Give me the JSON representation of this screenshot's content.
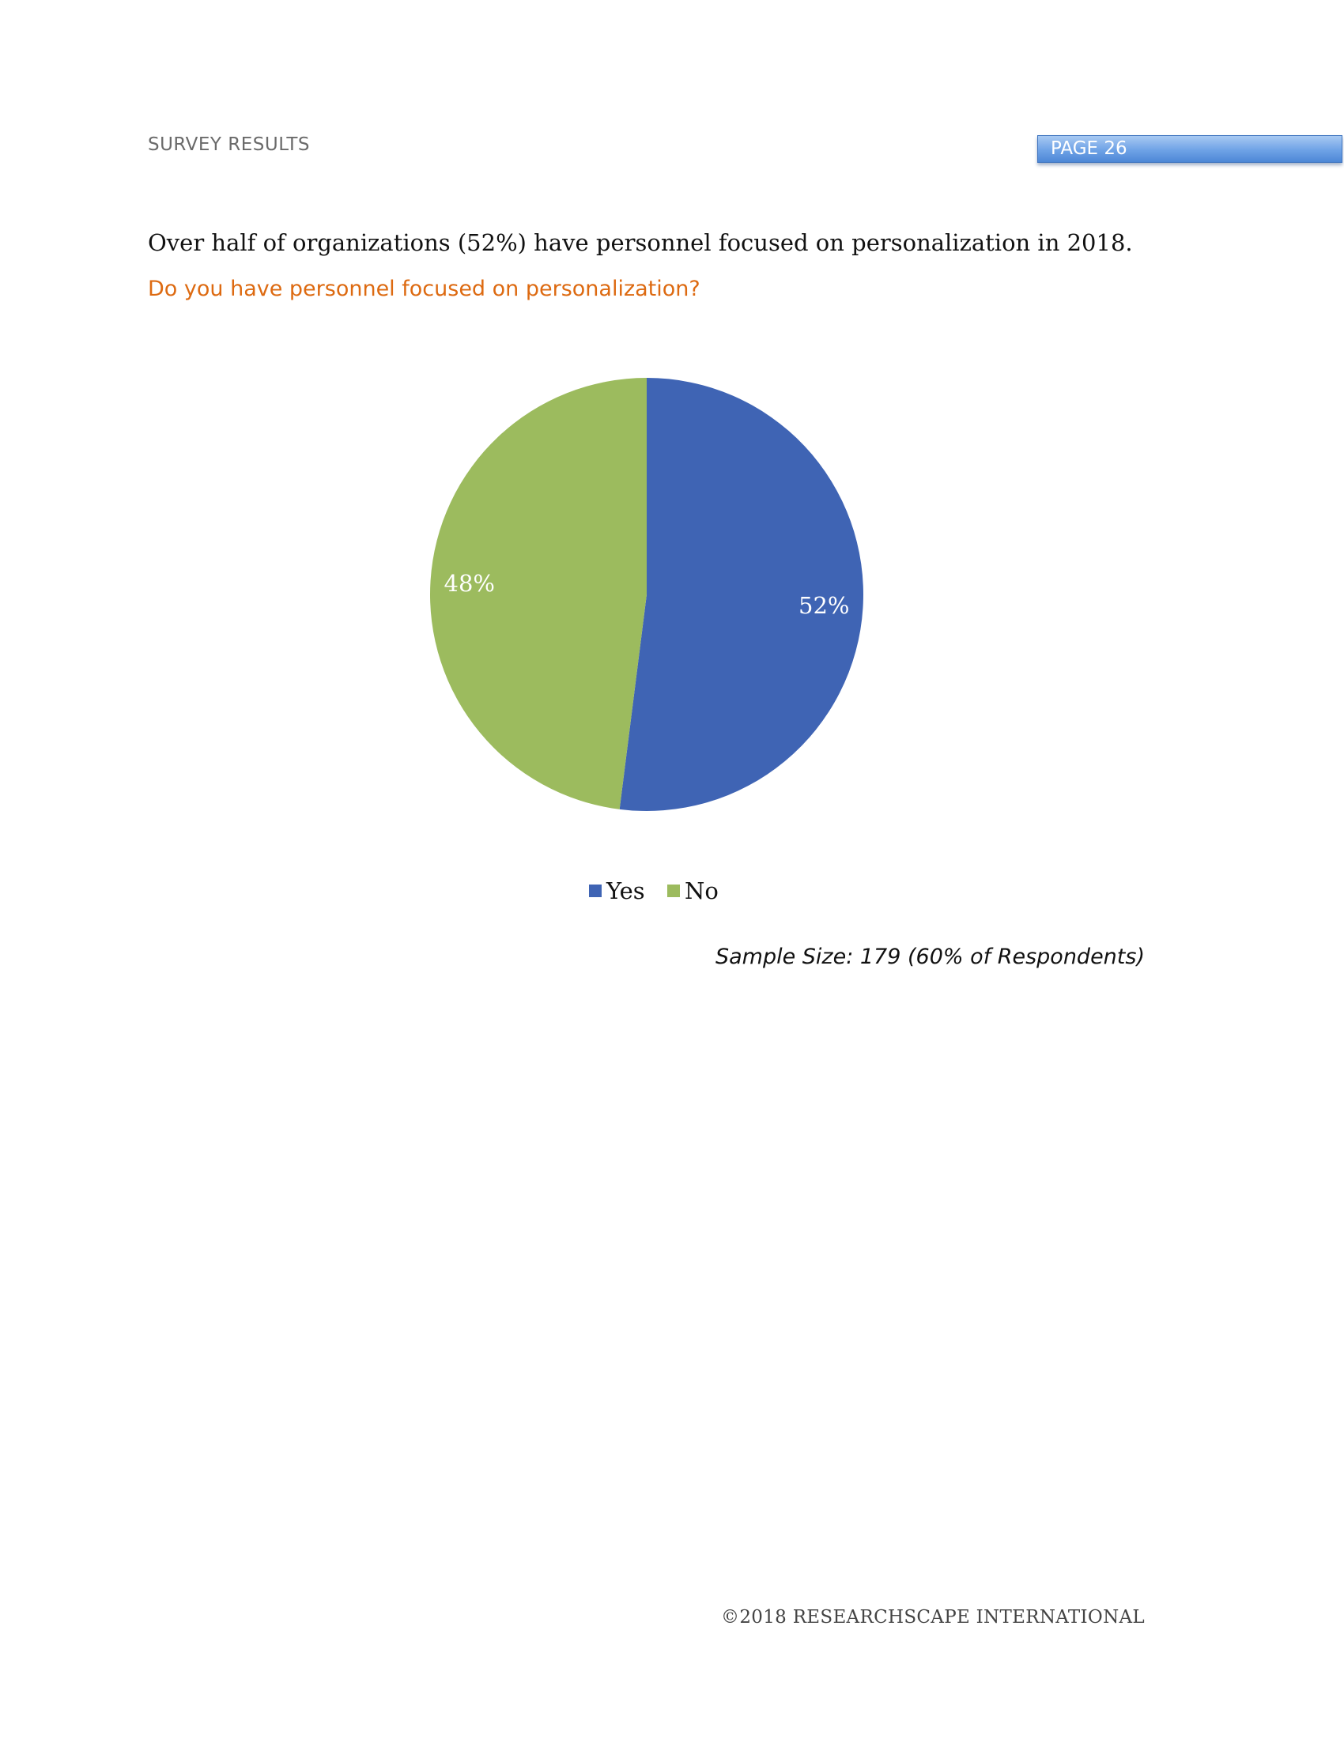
{
  "header": {
    "section_label": "SURVEY RESULTS",
    "page_label": "PAGE 26",
    "page_tab_color": "#6ea2e6"
  },
  "headline": "Over half of organizations (52%) have personnel focused on personalization in 2018.",
  "question": "Do you have personnel focused on personalization?",
  "chart_data": {
    "type": "pie",
    "title": "",
    "categories": [
      "Yes",
      "No"
    ],
    "values": [
      52,
      48
    ],
    "data_labels": [
      "52%",
      "48%"
    ],
    "colors": [
      "#3f64b4",
      "#9cbb5e"
    ],
    "legend": {
      "position": "bottom",
      "entries": [
        "Yes",
        "No"
      ]
    }
  },
  "sample_size": "Sample Size: 179 (60% of Respondents)",
  "footer": "©2018 RESEARCHSCAPE INTERNATIONAL"
}
